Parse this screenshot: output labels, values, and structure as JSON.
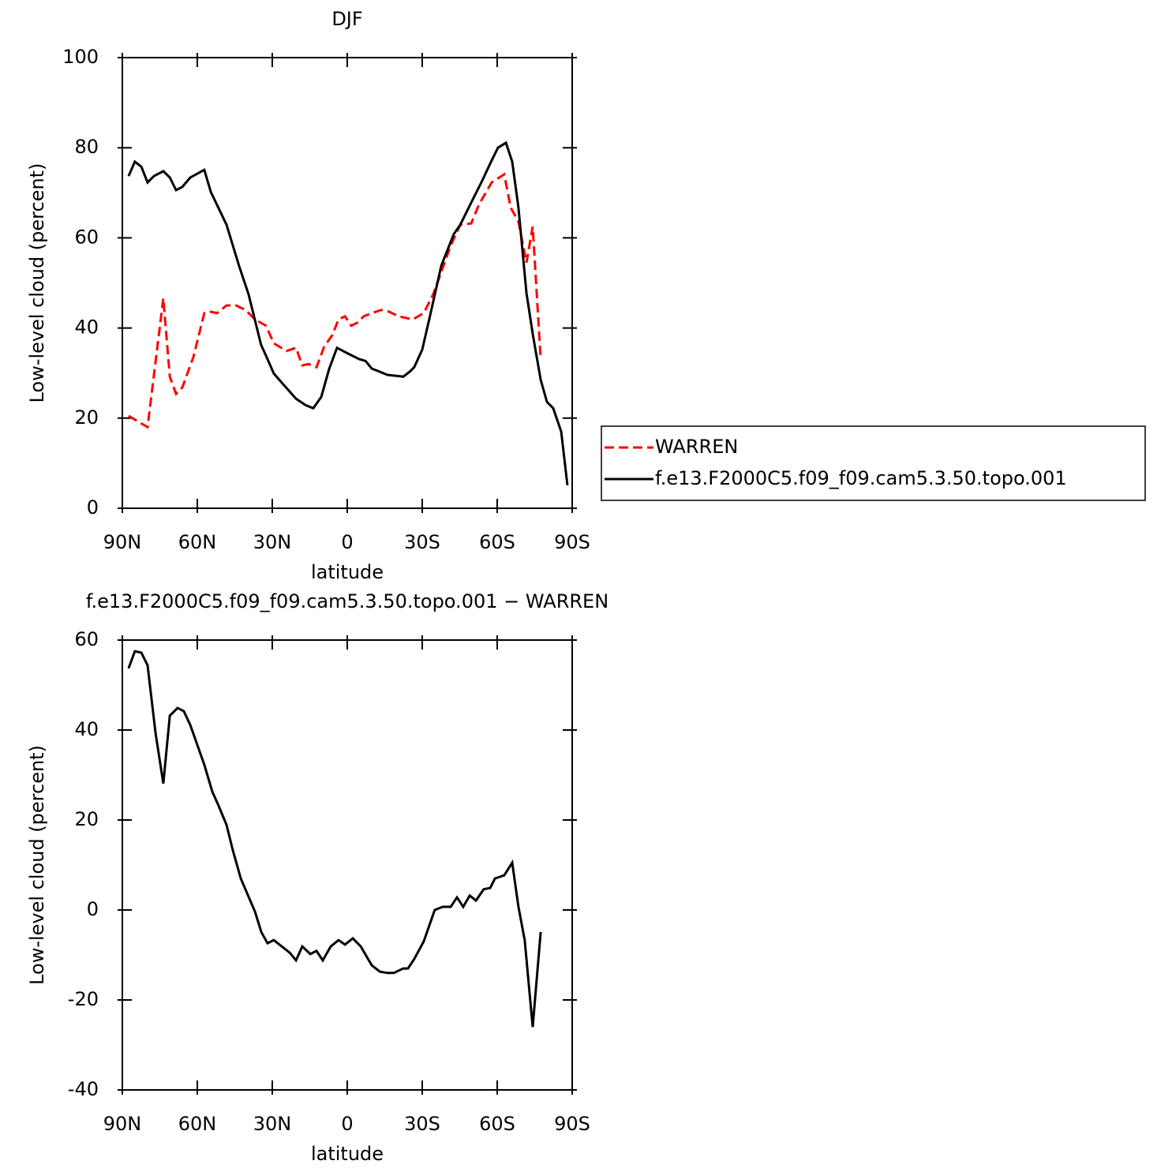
{
  "chart_data": [
    {
      "type": "line",
      "title": "DJF",
      "xlabel": "latitude",
      "ylabel": "Low-level cloud (percent)",
      "xlim": [
        90,
        -90
      ],
      "ylim": [
        0,
        100
      ],
      "xticks": [
        {
          "value": 90,
          "label": "90N"
        },
        {
          "value": 60,
          "label": "60N"
        },
        {
          "value": 30,
          "label": "30N"
        },
        0,
        {
          "value": -30,
          "label": "30S"
        },
        {
          "value": -60,
          "label": "60S"
        },
        {
          "value": -90,
          "label": "90S"
        }
      ],
      "yticks": [
        0,
        20,
        40,
        60,
        80,
        100
      ],
      "legend": "right",
      "series": [
        {
          "name": "WARREN",
          "color": "#ff0000",
          "dashed": true,
          "x": [
            87.5,
            79.9,
            73.6,
            71,
            68.5,
            66,
            61.6,
            57.2,
            54.6,
            52.1,
            48.3,
            44.5,
            40.7,
            36.9,
            32.5,
            29.4,
            24.3,
            20.5,
            18,
            15.5,
            12.3,
            9.2,
            6,
            3.5,
            0.9,
            -1.6,
            -4.1,
            -6.6,
            -9.8,
            -13.6,
            -16.8,
            -20.5,
            -26.2,
            -30.6,
            -34.4,
            -37.6,
            -41.4,
            -45.2,
            -49.6,
            -52.7,
            -57.8,
            -62.8,
            -65.4,
            -68.5,
            -71.7,
            -74.2,
            -77.4
          ],
          "values": [
            20.5,
            18.0,
            46.6,
            29.2,
            25.4,
            26.8,
            33.5,
            43.3,
            43.6,
            43.3,
            45.0,
            45.0,
            44.0,
            41.9,
            40.5,
            36.6,
            34.9,
            35.6,
            31.7,
            32.0,
            31.3,
            35.9,
            38.4,
            41.9,
            42.6,
            40.5,
            41.2,
            42.6,
            43.3,
            44.0,
            43.6,
            42.6,
            41.9,
            43.3,
            47.5,
            52.4,
            58.3,
            62.9,
            63.2,
            67.4,
            72.3,
            74.1,
            66.7,
            63.6,
            54.5,
            62.5,
            33.1
          ]
        },
        {
          "name": "f.e13.F2000C5.f09_f09.cam5.3.50.topo.001",
          "color": "#000000",
          "dashed": false,
          "x": [
            87.5,
            85,
            82.4,
            79.9,
            77.4,
            73.6,
            71,
            68.5,
            66,
            62.8,
            57.2,
            54.6,
            48.3,
            43.3,
            39.5,
            34.5,
            31.9,
            29.4,
            25.6,
            20.5,
            16.7,
            13.6,
            10.4,
            7.2,
            4.1,
            0.3,
            -4.7,
            -7.3,
            -9.8,
            -13,
            -16.1,
            -22.4,
            -25,
            -26.8,
            -30,
            -33.2,
            -37.6,
            -42.6,
            -45.2,
            -50.2,
            -54,
            -57.8,
            -60.3,
            -63.5,
            -66,
            -68.5,
            -71.7,
            -74.2,
            -77.4,
            -79.9,
            -82.4,
            -85.6,
            -88.1
          ],
          "values": [
            73.7,
            76.9,
            75.8,
            72.3,
            73.7,
            74.8,
            73.4,
            70.6,
            71.3,
            73.4,
            75.1,
            70.2,
            62.9,
            53.8,
            47.5,
            36.3,
            33.1,
            29.9,
            27.5,
            24.3,
            22.9,
            22.2,
            24.7,
            31.0,
            35.6,
            34.5,
            33.1,
            32.7,
            31.0,
            30.3,
            29.6,
            29.2,
            30.3,
            31.3,
            35.2,
            42.9,
            53.8,
            60.8,
            62.9,
            68.5,
            72.7,
            77.2,
            80.0,
            81.1,
            76.9,
            66.7,
            47.8,
            38.7,
            28.5,
            23.6,
            22.2,
            17.0,
            5.1
          ]
        }
      ]
    },
    {
      "type": "line",
      "title": "f.e13.F2000C5.f09_f09.cam5.3.50.topo.001 − WARREN",
      "xlabel": "latitude",
      "ylabel": "Low-level cloud (percent)",
      "xlim": [
        90,
        -90
      ],
      "ylim": [
        -40,
        60
      ],
      "xticks": [
        {
          "value": 90,
          "label": "90N"
        },
        {
          "value": 60,
          "label": "60N"
        },
        {
          "value": 30,
          "label": "30N"
        },
        0,
        {
          "value": -30,
          "label": "30S"
        },
        {
          "value": -60,
          "label": "60S"
        },
        {
          "value": -90,
          "label": "90S"
        }
      ],
      "yticks": [
        -40,
        -20,
        0,
        20,
        40,
        60
      ],
      "series": [
        {
          "color": "#000000",
          "dashed": false,
          "x": [
            87.5,
            85,
            82.4,
            79.9,
            76.7,
            73.6,
            71,
            67.9,
            65.4,
            62.8,
            57.2,
            54,
            51.5,
            48.3,
            45.8,
            42.6,
            36.9,
            34.4,
            31.9,
            29.4,
            23,
            20.5,
            18,
            14.8,
            12.3,
            9.8,
            6.6,
            3.5,
            0.9,
            -2.2,
            -5.4,
            -9.8,
            -13,
            -16.1,
            -18.6,
            -22.4,
            -24.3,
            -26.8,
            -30.6,
            -35,
            -38.2,
            -41.4,
            -43.9,
            -46.4,
            -49,
            -51.5,
            -54.6,
            -57.2,
            -59.1,
            -62.8,
            -66,
            -68.5,
            -71,
            -74.2,
            -77.4
          ],
          "values": [
            53.7,
            57.5,
            57.2,
            54.4,
            39.3,
            28.1,
            43.2,
            44.9,
            44.2,
            41.1,
            32.3,
            26.3,
            23.2,
            18.9,
            13.3,
            7.0,
            -0.4,
            -4.9,
            -7.4,
            -6.7,
            -9.5,
            -11.2,
            -8.1,
            -9.8,
            -9.1,
            -11.2,
            -8.1,
            -6.7,
            -7.7,
            -6.3,
            -8.1,
            -12.3,
            -13.7,
            -14.0,
            -14.0,
            -13.0,
            -13.0,
            -10.9,
            -7.0,
            0,
            0.7,
            0.7,
            2.8,
            0.7,
            3.2,
            2.1,
            4.6,
            4.9,
            7.0,
            7.7,
            10.5,
            0.7,
            -6.7,
            -26.0,
            -4.9
          ]
        }
      ]
    }
  ]
}
